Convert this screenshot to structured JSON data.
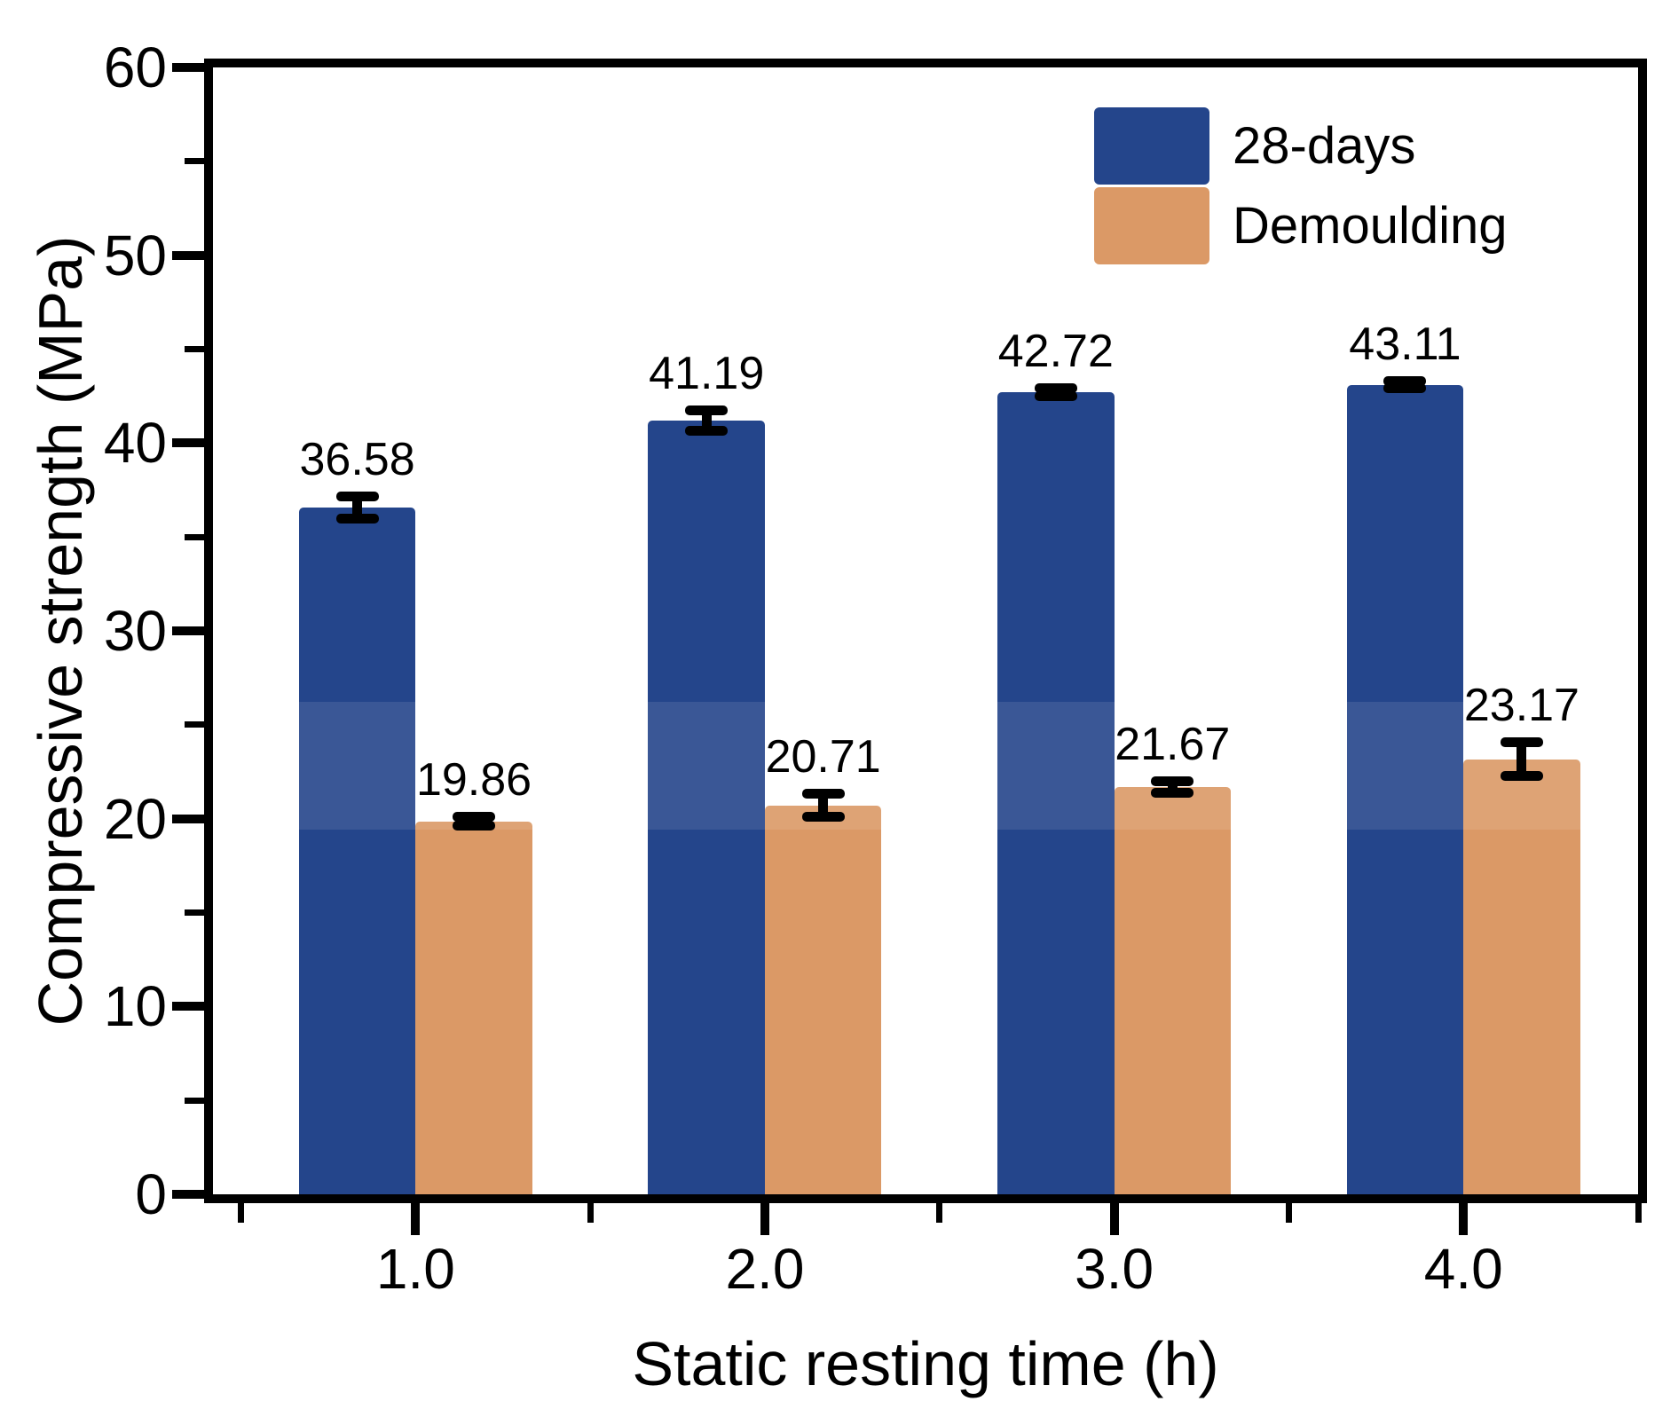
{
  "figure": {
    "background": "#ffffff",
    "axis_color": "#000000",
    "text_color": "#000000"
  },
  "chart_data": {
    "type": "bar",
    "title": "",
    "xlabel": "Static resting time (h)",
    "ylabel": "Compressive strength (MPa)",
    "categories": [
      "1.0",
      "2.0",
      "3.0",
      "4.0"
    ],
    "x_positions": [
      1.0,
      2.0,
      3.0,
      4.0
    ],
    "series": [
      {
        "name": "28-days",
        "color": "#24458B",
        "values": [
          36.58,
          41.19,
          42.72,
          43.11
        ],
        "value_labels": [
          "36.58",
          "41.19",
          "42.72",
          "43.11"
        ],
        "errors": [
          0.6,
          0.55,
          0.2,
          0.2
        ]
      },
      {
        "name": "Demoulding",
        "color": "#DB9966",
        "values": [
          19.86,
          20.71,
          21.67,
          23.17
        ],
        "value_labels": [
          "19.86",
          "20.71",
          "21.67",
          "23.17"
        ],
        "errors": [
          0.25,
          0.6,
          0.3,
          0.9
        ]
      }
    ],
    "ylim": [
      0,
      60
    ],
    "xlim": [
      0.42,
      4.5
    ],
    "y_major_ticks": [
      0,
      10,
      20,
      30,
      40,
      50,
      60
    ],
    "y_minor_ticks": [
      5,
      15,
      25,
      35,
      45,
      55
    ],
    "x_minor_ticks": [
      0.5,
      1.5,
      2.5,
      3.5,
      4.5
    ],
    "bar_width_units": 0.334,
    "error_bar_color": "#000000",
    "legend": {
      "position": "top-right"
    },
    "grid": false,
    "artifact_band_mpa": [
      19.4,
      26.2
    ]
  }
}
